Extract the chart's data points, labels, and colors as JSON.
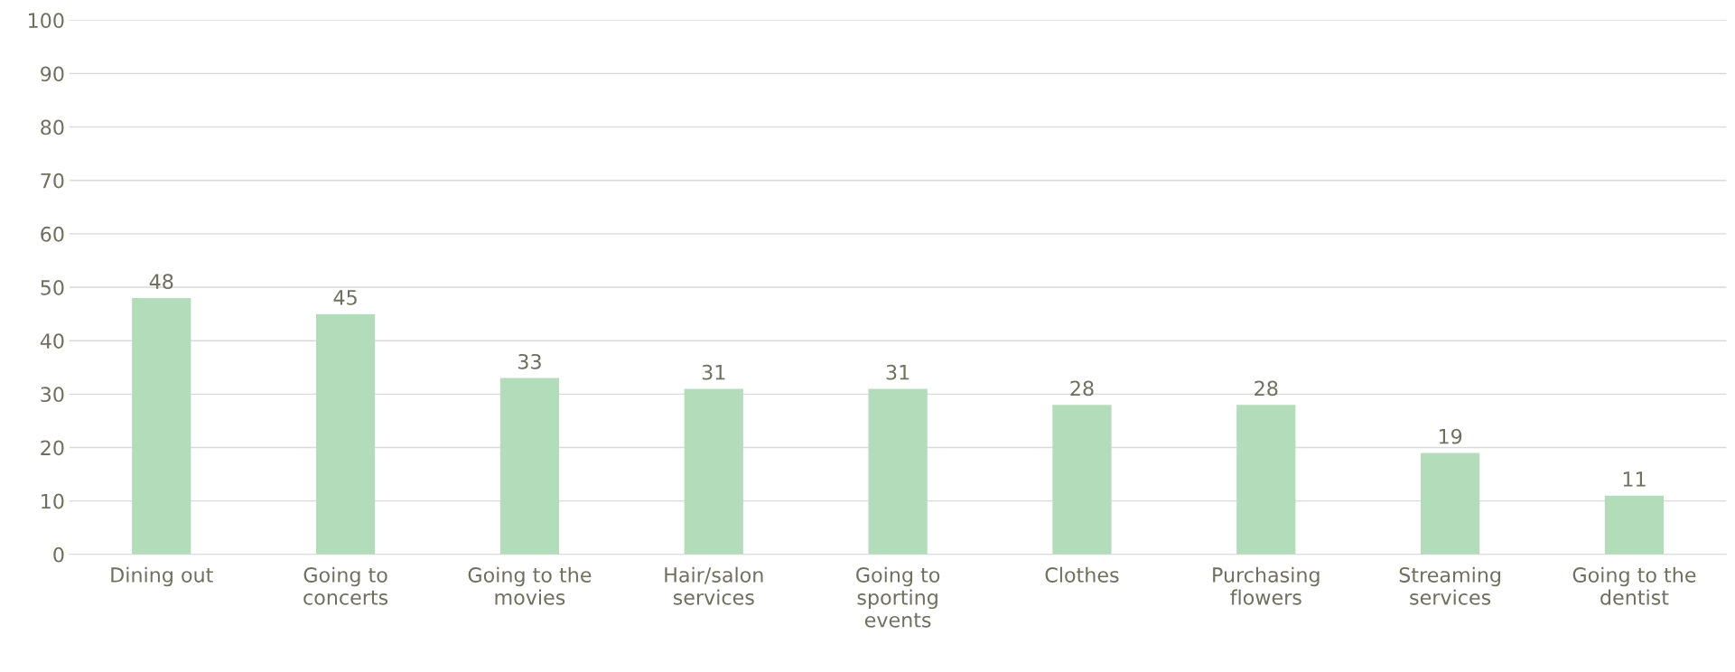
{
  "chart_data": {
    "type": "bar",
    "categories": [
      "Dining out",
      "Going to\nconcerts",
      "Going to the\nmovies",
      "Hair/salon\nservices",
      "Going to\nsporting\nevents",
      "Clothes",
      "Purchasing\nflowers",
      "Streaming\nservices",
      "Going to the\ndentist"
    ],
    "values": [
      48,
      45,
      33,
      31,
      31,
      28,
      28,
      19,
      11
    ],
    "color": "#b3dcbb",
    "ylim": [
      0,
      100
    ],
    "yticks": [
      0,
      10,
      20,
      30,
      40,
      50,
      60,
      70,
      80,
      90,
      100
    ],
    "grid": "y",
    "data_labels": true
  }
}
